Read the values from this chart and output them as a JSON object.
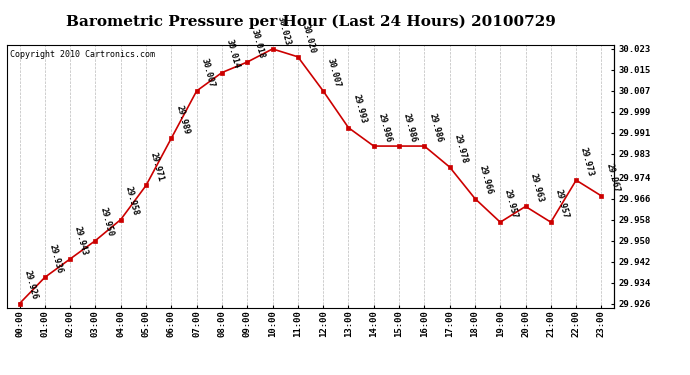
{
  "title": "Barometric Pressure per Hour (Last 24 Hours) 20100729",
  "copyright": "Copyright 2010 Cartronics.com",
  "hours": [
    0,
    1,
    2,
    3,
    4,
    5,
    6,
    7,
    8,
    9,
    10,
    11,
    12,
    13,
    14,
    15,
    16,
    17,
    18,
    19,
    20,
    21,
    22,
    23
  ],
  "hour_labels": [
    "00:00",
    "01:00",
    "02:00",
    "03:00",
    "04:00",
    "05:00",
    "06:00",
    "07:00",
    "08:00",
    "09:00",
    "10:00",
    "11:00",
    "12:00",
    "13:00",
    "14:00",
    "15:00",
    "16:00",
    "17:00",
    "18:00",
    "19:00",
    "20:00",
    "21:00",
    "22:00",
    "23:00"
  ],
  "values": [
    29.926,
    29.936,
    29.943,
    29.95,
    29.958,
    29.971,
    29.989,
    30.007,
    30.014,
    30.018,
    30.023,
    30.02,
    30.007,
    29.993,
    29.986,
    29.986,
    29.986,
    29.978,
    29.966,
    29.957,
    29.963,
    29.957,
    29.973,
    29.967
  ],
  "ylim_min": 29.9245,
  "ylim_max": 30.0245,
  "yticks": [
    29.926,
    29.934,
    29.942,
    29.95,
    29.958,
    29.966,
    29.974,
    29.983,
    29.991,
    29.999,
    30.007,
    30.015,
    30.023
  ],
  "line_color": "#cc0000",
  "marker_color": "#cc0000",
  "bg_color": "white",
  "grid_color": "#bbbbbb",
  "title_fontsize": 11,
  "tick_fontsize": 6.5,
  "annotation_fontsize": 6,
  "copyright_fontsize": 6
}
